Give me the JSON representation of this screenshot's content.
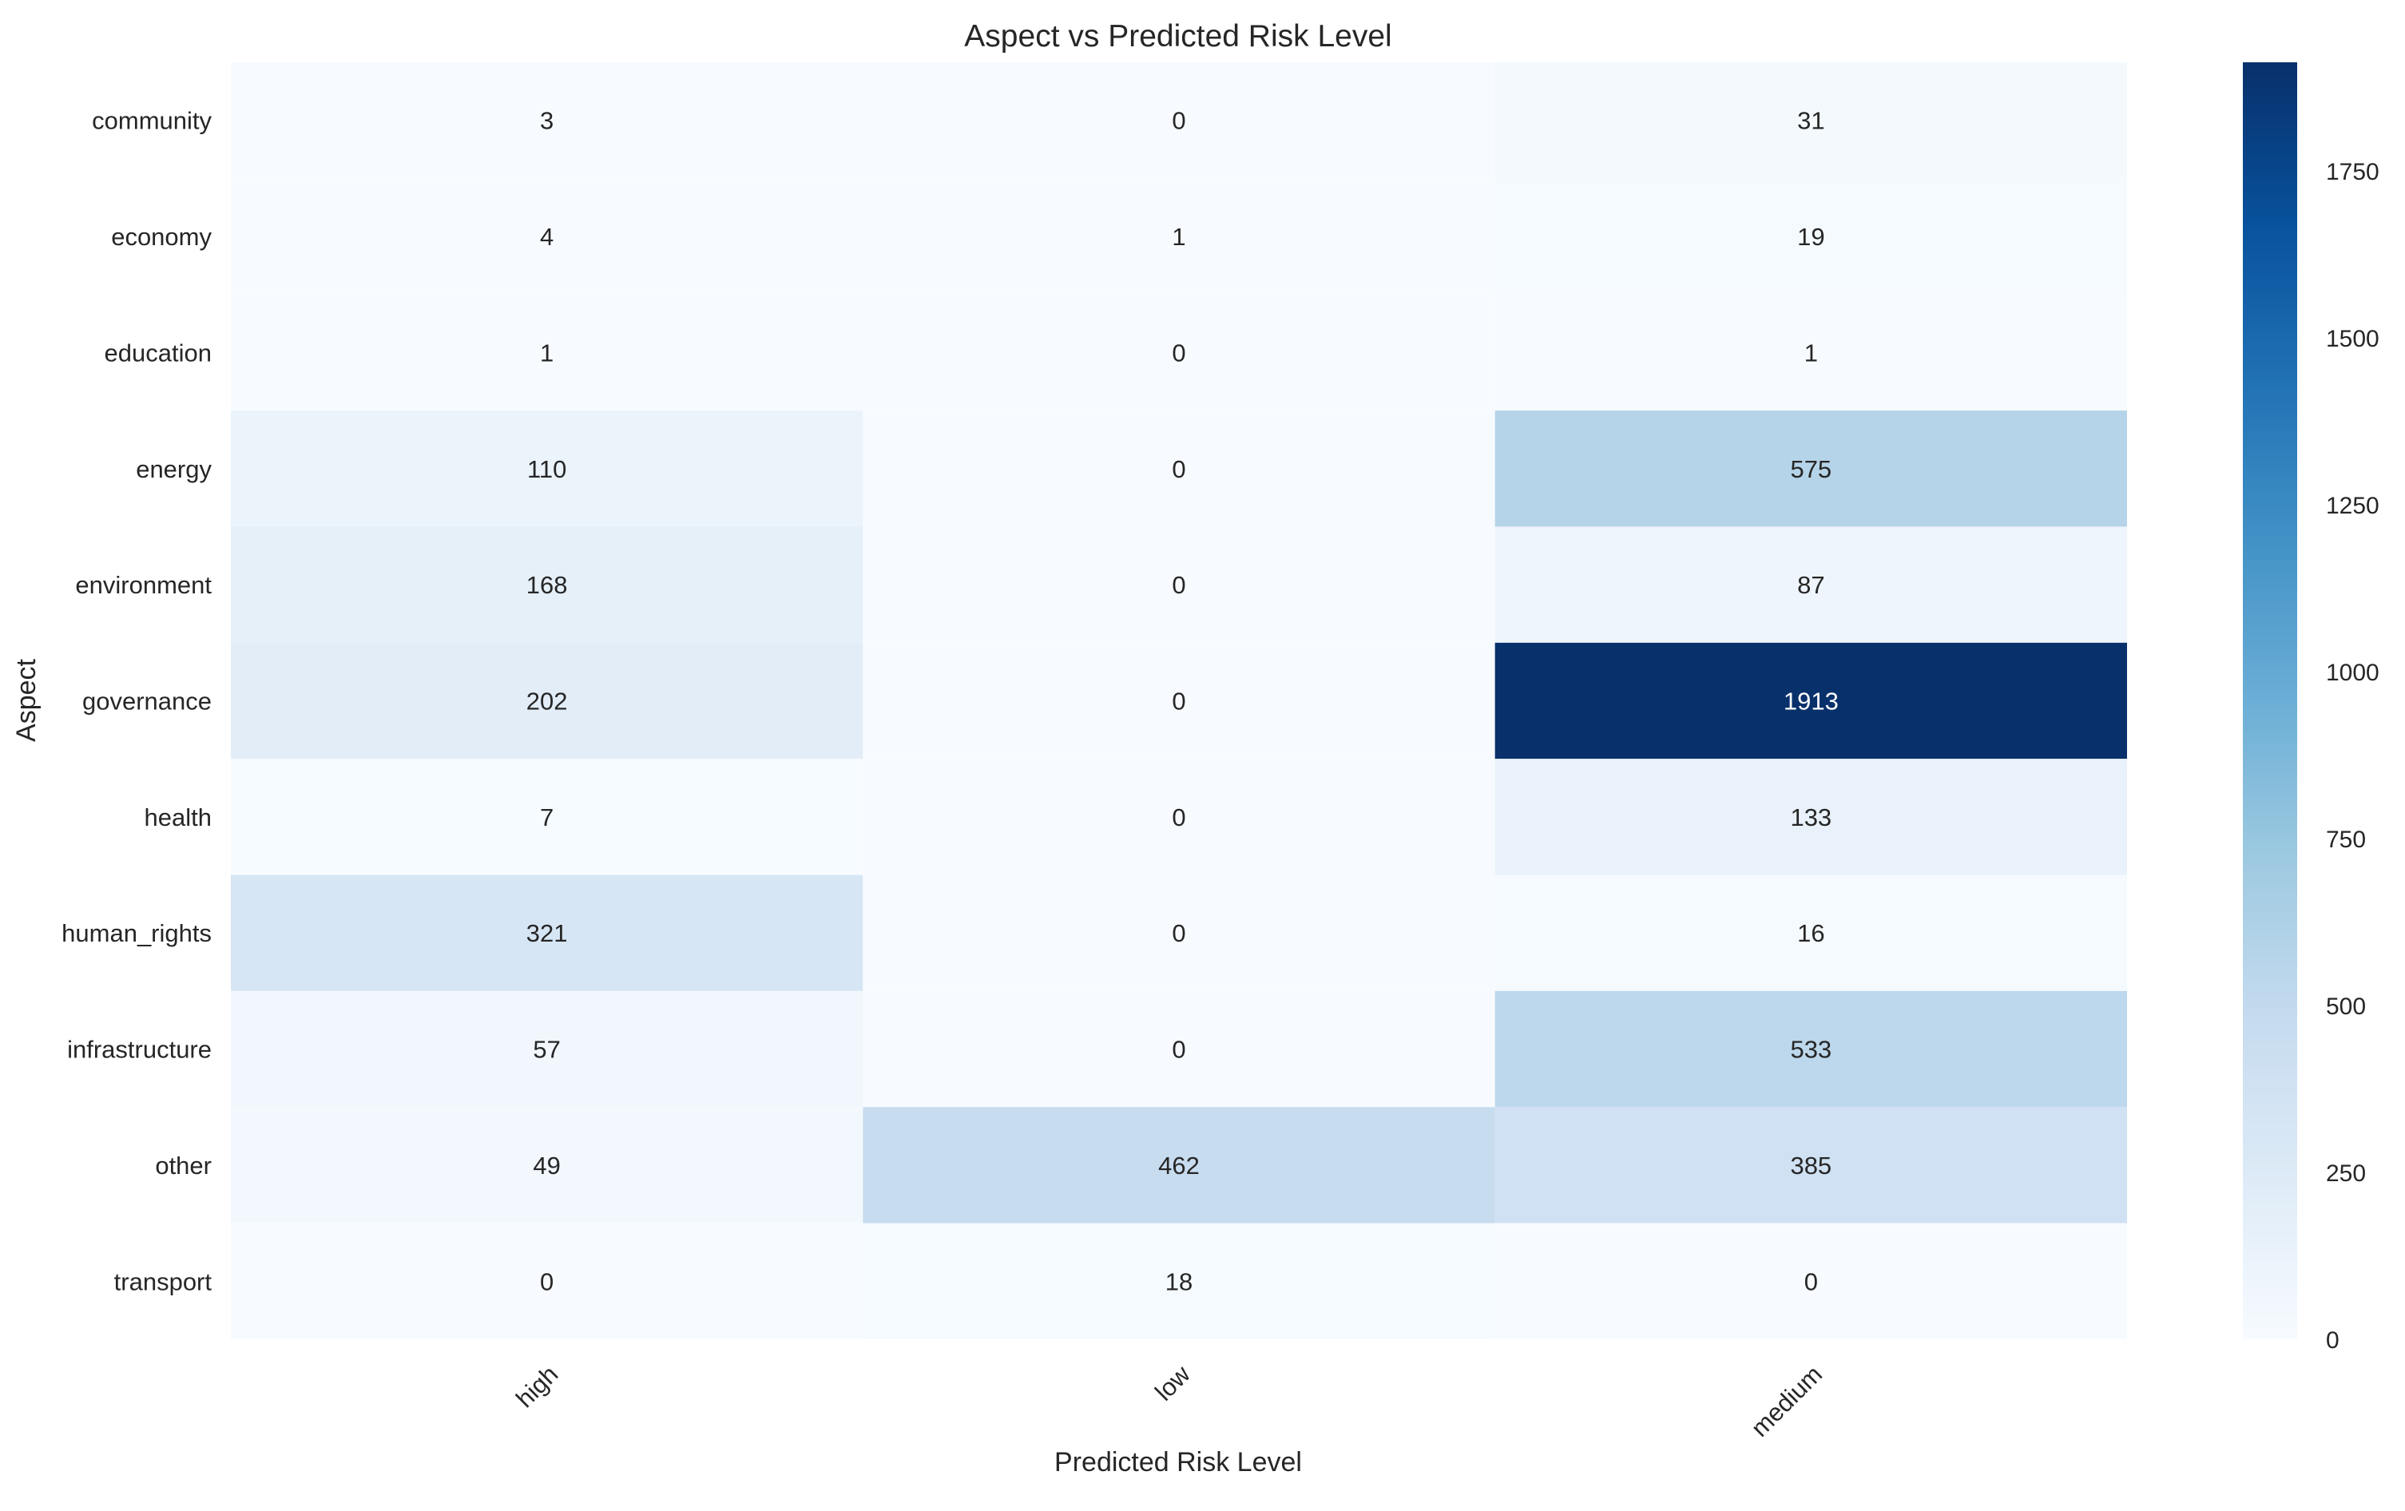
{
  "chart_data": {
    "type": "heatmap",
    "title": "Aspect vs Predicted Risk Level",
    "xlabel": "Predicted Risk Level",
    "ylabel": "Aspect",
    "x_categories": [
      "high",
      "low",
      "medium"
    ],
    "y_categories": [
      "community",
      "economy",
      "education",
      "energy",
      "environment",
      "governance",
      "health",
      "human_rights",
      "infrastructure",
      "other",
      "transport"
    ],
    "values": [
      [
        3,
        0,
        31
      ],
      [
        4,
        1,
        19
      ],
      [
        1,
        0,
        1
      ],
      [
        110,
        0,
        575
      ],
      [
        168,
        0,
        87
      ],
      [
        202,
        0,
        1913
      ],
      [
        7,
        0,
        133
      ],
      [
        321,
        0,
        16
      ],
      [
        57,
        0,
        533
      ],
      [
        49,
        462,
        385
      ],
      [
        0,
        18,
        0
      ]
    ],
    "colorbar": {
      "colormap": "Blues",
      "range": [
        0,
        1913
      ],
      "ticks": [
        0,
        250,
        500,
        750,
        1000,
        1250,
        1500,
        1750
      ]
    }
  }
}
